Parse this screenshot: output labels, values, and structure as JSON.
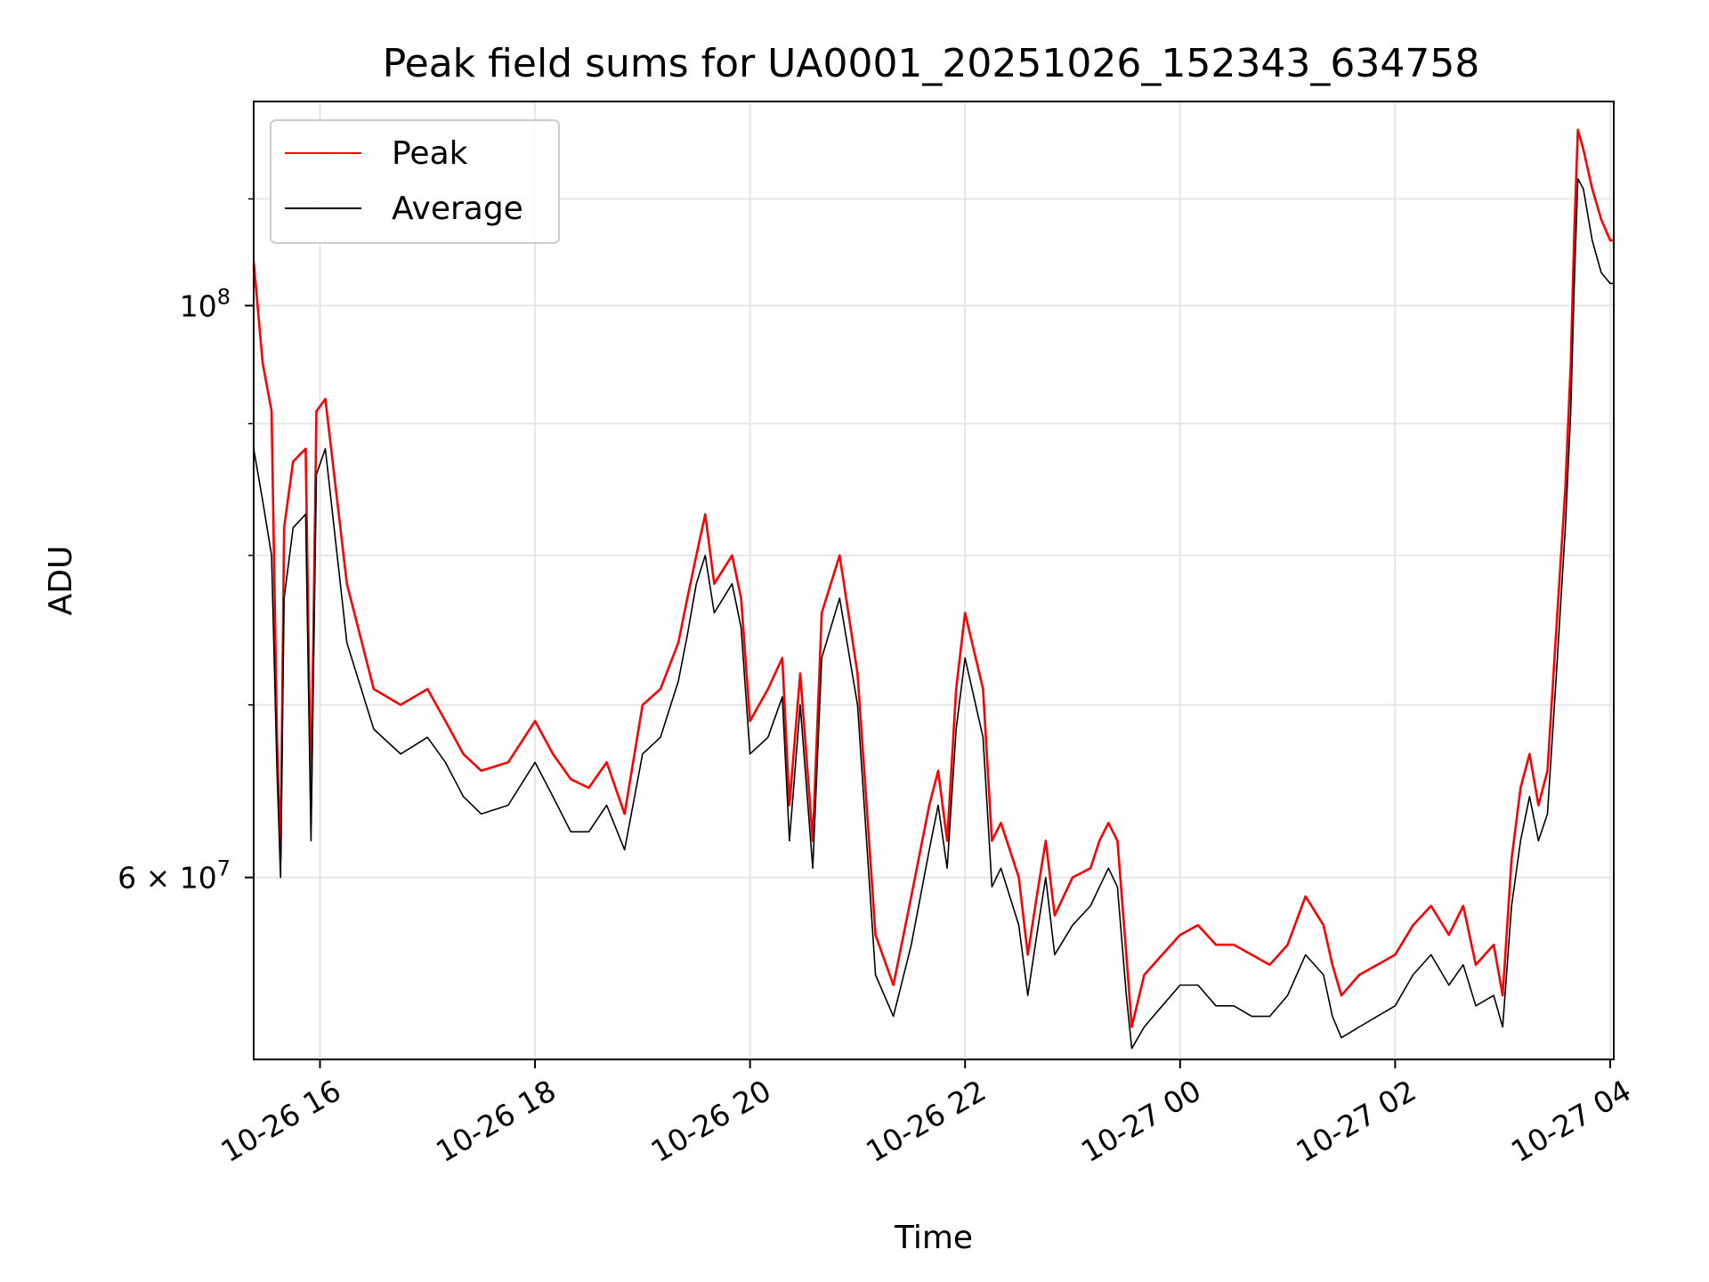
{
  "chart_data": {
    "type": "line",
    "title": "Peak field sums for UA0001_20251026_152343_634758",
    "xlabel": "Time",
    "ylabel": "ADU",
    "y_scale": "log",
    "grid": true,
    "legend_position": "top-left",
    "xlim": [
      "2025-10-26 15:23",
      "2025-10-27 04:02"
    ],
    "ylim": [
      51000000,
      120000000
    ],
    "x_ticks": [
      {
        "value": "2025-10-26 16:00",
        "label": "10-26 16"
      },
      {
        "value": "2025-10-26 18:00",
        "label": "10-26 18"
      },
      {
        "value": "2025-10-26 20:00",
        "label": "10-26 20"
      },
      {
        "value": "2025-10-26 22:00",
        "label": "10-26 22"
      },
      {
        "value": "2025-10-27 00:00",
        "label": "10-27 00"
      },
      {
        "value": "2025-10-27 02:00",
        "label": "10-27 02"
      },
      {
        "value": "2025-10-27 04:00",
        "label": "10-27 04"
      }
    ],
    "y_major_ticks": [
      {
        "value": 100000000,
        "base": "10",
        "exp": "8"
      },
      {
        "value": 60000000,
        "base": "6 × 10",
        "exp": "7"
      }
    ],
    "y_minor_ticks": [
      70000000,
      80000000,
      90000000,
      110000000
    ],
    "x": [
      "2025-10-26 15:23",
      "2025-10-26 15:28",
      "2025-10-26 15:33",
      "2025-10-26 15:36",
      "2025-10-26 15:38",
      "2025-10-26 15:40",
      "2025-10-26 15:45",
      "2025-10-26 15:52",
      "2025-10-26 15:55",
      "2025-10-26 15:58",
      "2025-10-26 16:03",
      "2025-10-26 16:15",
      "2025-10-26 16:30",
      "2025-10-26 16:45",
      "2025-10-26 17:00",
      "2025-10-26 17:10",
      "2025-10-26 17:20",
      "2025-10-26 17:30",
      "2025-10-26 17:45",
      "2025-10-26 18:00",
      "2025-10-26 18:10",
      "2025-10-26 18:20",
      "2025-10-26 18:30",
      "2025-10-26 18:40",
      "2025-10-26 18:50",
      "2025-10-26 19:00",
      "2025-10-26 19:10",
      "2025-10-26 19:20",
      "2025-10-26 19:25",
      "2025-10-26 19:30",
      "2025-10-26 19:35",
      "2025-10-26 19:40",
      "2025-10-26 19:50",
      "2025-10-26 19:55",
      "2025-10-26 20:00",
      "2025-10-26 20:10",
      "2025-10-26 20:18",
      "2025-10-26 20:22",
      "2025-10-26 20:28",
      "2025-10-26 20:35",
      "2025-10-26 20:40",
      "2025-10-26 20:50",
      "2025-10-26 21:00",
      "2025-10-26 21:10",
      "2025-10-26 21:20",
      "2025-10-26 21:30",
      "2025-10-26 21:40",
      "2025-10-26 21:45",
      "2025-10-26 21:50",
      "2025-10-26 21:55",
      "2025-10-26 22:00",
      "2025-10-26 22:10",
      "2025-10-26 22:15",
      "2025-10-26 22:20",
      "2025-10-26 22:30",
      "2025-10-26 22:35",
      "2025-10-26 22:40",
      "2025-10-26 22:45",
      "2025-10-26 22:50",
      "2025-10-26 23:00",
      "2025-10-26 23:10",
      "2025-10-26 23:15",
      "2025-10-26 23:20",
      "2025-10-26 23:25",
      "2025-10-26 23:30",
      "2025-10-26 23:33",
      "2025-10-26 23:40",
      "2025-10-26 23:50",
      "2025-10-27 00:00",
      "2025-10-27 00:10",
      "2025-10-27 00:20",
      "2025-10-27 00:30",
      "2025-10-27 00:40",
      "2025-10-27 00:50",
      "2025-10-27 01:00",
      "2025-10-27 01:10",
      "2025-10-27 01:20",
      "2025-10-27 01:25",
      "2025-10-27 01:30",
      "2025-10-27 01:40",
      "2025-10-27 01:50",
      "2025-10-27 02:00",
      "2025-10-27 02:10",
      "2025-10-27 02:20",
      "2025-10-27 02:30",
      "2025-10-27 02:38",
      "2025-10-27 02:45",
      "2025-10-27 02:55",
      "2025-10-27 03:00",
      "2025-10-27 03:05",
      "2025-10-27 03:10",
      "2025-10-27 03:15",
      "2025-10-27 03:20",
      "2025-10-27 03:25",
      "2025-10-27 03:30",
      "2025-10-27 03:35",
      "2025-10-27 03:38",
      "2025-10-27 03:40",
      "2025-10-27 03:42",
      "2025-10-27 03:45",
      "2025-10-27 03:50",
      "2025-10-27 03:55",
      "2025-10-27 04:00",
      "2025-10-27 04:02"
    ],
    "series": [
      {
        "name": "Peak",
        "color": "#ff0000",
        "values": [
          104000000,
          95000000,
          91000000,
          68000000,
          61000000,
          82000000,
          87000000,
          88000000,
          64000000,
          91000000,
          92000000,
          78000000,
          71000000,
          70000000,
          71000000,
          69000000,
          67000000,
          66000000,
          66500000,
          69000000,
          67000000,
          65500000,
          65000000,
          66500000,
          63500000,
          70000000,
          71000000,
          74000000,
          77000000,
          80000000,
          83000000,
          78000000,
          80000000,
          77000000,
          69000000,
          71000000,
          73000000,
          64000000,
          72000000,
          62000000,
          76000000,
          80000000,
          72000000,
          57000000,
          54500000,
          59000000,
          64000000,
          66000000,
          62000000,
          71000000,
          76000000,
          71000000,
          62000000,
          63000000,
          60000000,
          56000000,
          59000000,
          62000000,
          58000000,
          60000000,
          60500000,
          62000000,
          63000000,
          62000000,
          56000000,
          52500000,
          55000000,
          56000000,
          57000000,
          57500000,
          56500000,
          56500000,
          56000000,
          55500000,
          56500000,
          59000000,
          57500000,
          55500000,
          54000000,
          55000000,
          55500000,
          56000000,
          57500000,
          58500000,
          57000000,
          58500000,
          55500000,
          56500000,
          54000000,
          61000000,
          65000000,
          67000000,
          64000000,
          66000000,
          75000000,
          85000000,
          95000000,
          107000000,
          117000000,
          115000000,
          111000000,
          108000000,
          106000000,
          106000000
        ]
      },
      {
        "name": "Average",
        "color": "#000000",
        "values": [
          88000000,
          84000000,
          80000000,
          66000000,
          60000000,
          77000000,
          82000000,
          83000000,
          62000000,
          86000000,
          88000000,
          74000000,
          68500000,
          67000000,
          68000000,
          66500000,
          64500000,
          63500000,
          64000000,
          66500000,
          64500000,
          62500000,
          62500000,
          64000000,
          61500000,
          67000000,
          68000000,
          71500000,
          74500000,
          78000000,
          80000000,
          76000000,
          78000000,
          75000000,
          67000000,
          68000000,
          70500000,
          62000000,
          70000000,
          60500000,
          73000000,
          77000000,
          70000000,
          55000000,
          53000000,
          56500000,
          61500000,
          64000000,
          60500000,
          68500000,
          73000000,
          68000000,
          59500000,
          60500000,
          57500000,
          54000000,
          57000000,
          60000000,
          56000000,
          57500000,
          58500000,
          59500000,
          60500000,
          59500000,
          54000000,
          51500000,
          52500000,
          53500000,
          54500000,
          54500000,
          53500000,
          53500000,
          53000000,
          53000000,
          54000000,
          56000000,
          55000000,
          53000000,
          52000000,
          52500000,
          53000000,
          53500000,
          55000000,
          56000000,
          54500000,
          55500000,
          53500000,
          54000000,
          52500000,
          58500000,
          62000000,
          64500000,
          62000000,
          63500000,
          72000000,
          82000000,
          91000000,
          102000000,
          112000000,
          111000000,
          106000000,
          103000000,
          102000000,
          102000000
        ]
      }
    ]
  }
}
